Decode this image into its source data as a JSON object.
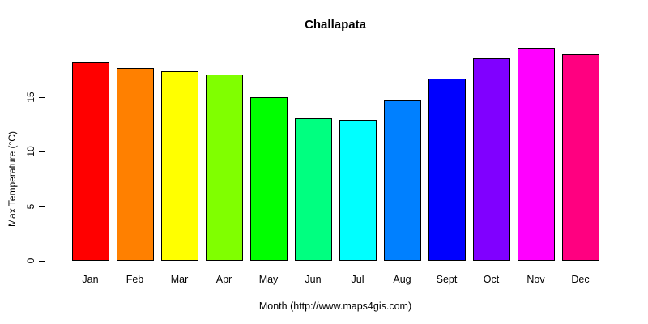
{
  "page": {
    "background_color": "#ffffff",
    "text_color": "#000000"
  },
  "chart_data": {
    "type": "bar",
    "title": "Challapata",
    "xlabel": "Month (http://www.maps4gis.com)",
    "ylabel": "Max Temperature (°C)",
    "categories": [
      "Jan",
      "Feb",
      "Mar",
      "Apr",
      "May",
      "Jun",
      "Jul",
      "Aug",
      "Sept",
      "Oct",
      "Nov",
      "Dec"
    ],
    "values": [
      18.2,
      17.7,
      17.4,
      17.1,
      15.0,
      13.1,
      12.9,
      14.7,
      16.7,
      18.6,
      19.5,
      18.9
    ],
    "colors": [
      "#FF0000",
      "#FF8000",
      "#FFFF00",
      "#80FF00",
      "#00FF00",
      "#00FF80",
      "#00FFFF",
      "#0080FF",
      "#0000FF",
      "#8000FF",
      "#FF00FF",
      "#FF0080"
    ],
    "bar_border_color": "#000000",
    "yticks": [
      0,
      5,
      10,
      15
    ],
    "ylim": [
      0,
      20
    ],
    "grid": false,
    "legend": "none"
  }
}
